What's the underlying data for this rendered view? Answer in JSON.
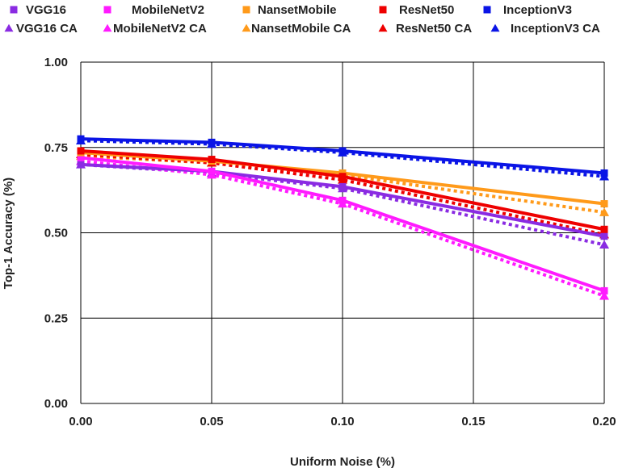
{
  "chart_data": {
    "type": "line",
    "title": "",
    "xlabel": "Uniform Noise (%)",
    "ylabel": "Top-1 Accuracy  (%)",
    "x": [
      0.0,
      0.05,
      0.1,
      0.2
    ],
    "xlim": [
      0.0,
      0.2
    ],
    "ylim": [
      0.0,
      1.0
    ],
    "x_ticks": [
      "0.00",
      "0.05",
      "0.10",
      "0.15",
      "0.20"
    ],
    "y_ticks": [
      "0.00",
      "0.25",
      "0.50",
      "0.75",
      "1.00"
    ],
    "grid": true,
    "legend_position": "top",
    "series": [
      {
        "name": "VGG16",
        "color": "#8a2be2",
        "marker": "square",
        "dash": false,
        "values": [
          0.7,
          0.68,
          0.635,
          0.49
        ]
      },
      {
        "name": "MobileNetV2",
        "color": "#ff1aff",
        "marker": "square",
        "dash": false,
        "values": [
          0.72,
          0.68,
          0.595,
          0.33
        ]
      },
      {
        "name": "NansetMobile",
        "color": "#ff9a1a",
        "marker": "square",
        "dash": false,
        "values": [
          0.735,
          0.71,
          0.675,
          0.585
        ]
      },
      {
        "name": "ResNet50",
        "color": "#ee0000",
        "marker": "square",
        "dash": false,
        "values": [
          0.74,
          0.715,
          0.665,
          0.51
        ]
      },
      {
        "name": "InceptionV3",
        "color": "#0a14e6",
        "marker": "square",
        "dash": false,
        "values": [
          0.775,
          0.765,
          0.74,
          0.675
        ]
      },
      {
        "name": "VGG16 CA",
        "color": "#8a2be2",
        "marker": "triangle",
        "dash": true,
        "values": [
          0.7,
          0.675,
          0.63,
          0.465
        ]
      },
      {
        "name": "MobileNetV2 CA",
        "color": "#ff1aff",
        "marker": "triangle",
        "dash": true,
        "values": [
          0.71,
          0.67,
          0.585,
          0.315
        ]
      },
      {
        "name": "NansetMobile CA",
        "color": "#ff9a1a",
        "marker": "triangle",
        "dash": true,
        "values": [
          0.725,
          0.705,
          0.67,
          0.56
        ]
      },
      {
        "name": "ResNet50 CA",
        "color": "#ee0000",
        "marker": "triangle",
        "dash": true,
        "values": [
          0.73,
          0.705,
          0.655,
          0.495
        ]
      },
      {
        "name": "InceptionV3 CA",
        "color": "#0a14e6",
        "marker": "triangle",
        "dash": true,
        "values": [
          0.77,
          0.76,
          0.735,
          0.665
        ]
      }
    ]
  }
}
